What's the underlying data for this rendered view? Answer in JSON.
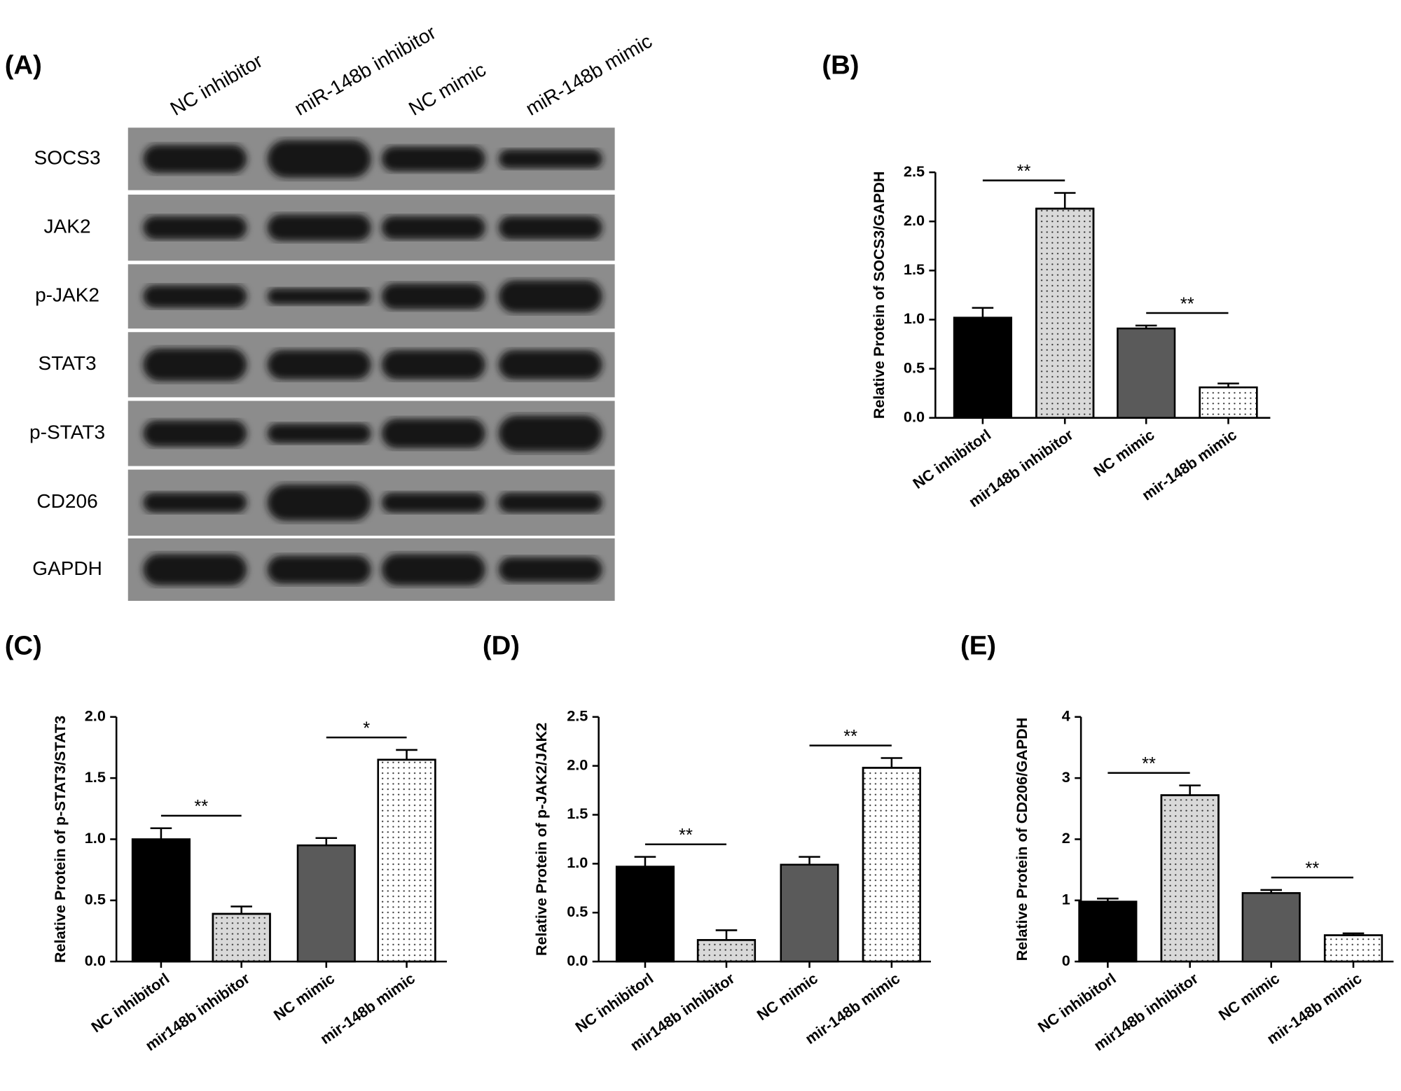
{
  "blot": {
    "label": "(A)",
    "lanes": [
      "NC inhibitor",
      "miR-148b inhibitor",
      "NC mimic",
      "miR-148b mimic"
    ],
    "proteins": [
      "SOCS3",
      "JAK2",
      "p-JAK2",
      "STAT3",
      "p-STAT3",
      "CD206",
      "GAPDH"
    ]
  },
  "chart_data": [
    {
      "type": "bar",
      "label": "(B)",
      "ylabel": "Relative Protein of SOCS3/GAPDH",
      "categories": [
        "NC inhibitorl",
        "mir148b inhibitor",
        "NC mimic",
        "mir-148b mimic"
      ],
      "values": [
        1.02,
        2.13,
        0.91,
        0.31
      ],
      "errors": [
        0.1,
        0.16,
        0.03,
        0.04
      ],
      "colors": [
        "#000000",
        "#d9d9d9",
        "#5a5a5a",
        "#ffffff"
      ],
      "patterns": [
        "none",
        "dots",
        "none",
        "dots"
      ],
      "ylim": [
        0,
        2.5
      ],
      "yticks": [
        {
          "value": 0,
          "label": "0.0"
        },
        0.5,
        {
          "value": 1,
          "label": "1.0"
        },
        1.5,
        {
          "value": 2,
          "label": "2.0"
        },
        2.5
      ],
      "annotations": [
        {
          "text": "**",
          "from": 0,
          "to": 1
        },
        {
          "text": "**",
          "from": 2,
          "to": 3
        }
      ]
    },
    {
      "type": "bar",
      "label": "(C)",
      "ylabel": "Relative  Protein of p-STAT3/STAT3",
      "categories": [
        "NC inhibitorl",
        "mir148b inhibitor",
        "NC mimic",
        "mir-148b mimic"
      ],
      "values": [
        1.0,
        0.39,
        0.95,
        1.65
      ],
      "errors": [
        0.09,
        0.06,
        0.06,
        0.08
      ],
      "colors": [
        "#000000",
        "#d9d9d9",
        "#5a5a5a",
        "#ffffff"
      ],
      "patterns": [
        "none",
        "dots",
        "none",
        "dots"
      ],
      "ylim": [
        0,
        2
      ],
      "yticks": [
        {
          "value": 0,
          "label": "0.0"
        },
        0.5,
        {
          "value": 1,
          "label": "1.0"
        },
        1.5,
        {
          "value": 2,
          "label": "2.0"
        }
      ],
      "annotations": [
        {
          "text": "**",
          "from": 0,
          "to": 1
        },
        {
          "text": "*",
          "from": 2,
          "to": 3
        }
      ]
    },
    {
      "type": "bar",
      "label": "(D)",
      "ylabel": "Relative Protein of p-JAK2/JAK2",
      "categories": [
        "NC inhibitorl",
        "mir148b inhibitor",
        "NC mimic",
        "mir-148b mimic"
      ],
      "values": [
        0.97,
        0.22,
        0.99,
        1.98
      ],
      "errors": [
        0.1,
        0.1,
        0.08,
        0.1
      ],
      "colors": [
        "#000000",
        "#d9d9d9",
        "#5a5a5a",
        "#ffffff"
      ],
      "patterns": [
        "none",
        "dots",
        "none",
        "dots"
      ],
      "ylim": [
        0,
        2.5
      ],
      "yticks": [
        {
          "value": 0,
          "label": "0.0"
        },
        0.5,
        {
          "value": 1,
          "label": "1.0"
        },
        1.5,
        {
          "value": 2,
          "label": "2.0"
        },
        2.5
      ],
      "annotations": [
        {
          "text": "**",
          "from": 0,
          "to": 1
        },
        {
          "text": "**",
          "from": 2,
          "to": 3
        }
      ]
    },
    {
      "type": "bar",
      "label": "(E)",
      "ylabel": "Relative Protein of CD206/GAPDH",
      "categories": [
        "NC inhibitorl",
        "mir148b inhibitor",
        "NC mimic",
        "mir-148b mimic"
      ],
      "values": [
        0.98,
        2.72,
        1.12,
        0.43
      ],
      "errors": [
        0.05,
        0.16,
        0.05,
        0.03
      ],
      "colors": [
        "#000000",
        "#d9d9d9",
        "#5a5a5a",
        "#ffffff"
      ],
      "patterns": [
        "none",
        "dots",
        "none",
        "dots"
      ],
      "ylim": [
        0,
        4
      ],
      "yticks": [
        0,
        1,
        2,
        3,
        4
      ],
      "annotations": [
        {
          "text": "**",
          "from": 0,
          "to": 1
        },
        {
          "text": "**",
          "from": 2,
          "to": 3
        }
      ]
    }
  ]
}
